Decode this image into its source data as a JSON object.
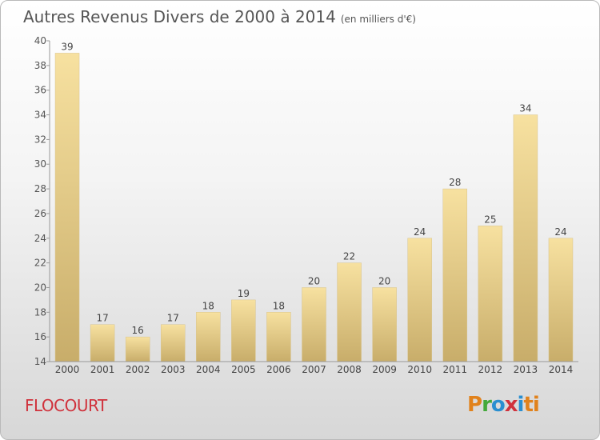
{
  "header": {
    "title": "Autres Revenus Divers de 2000 à 2014",
    "unit": "(en milliers d'€)"
  },
  "footer": {
    "place": "FLOCOURT",
    "logo_letters": [
      "P",
      "r",
      "o",
      "x",
      "i",
      "ti"
    ]
  },
  "colors": {
    "bar_light": "#f7e1a0",
    "bar_dark": "#c8ad6a",
    "place_text": "#d0323c"
  },
  "chart_data": {
    "type": "bar",
    "title": "Autres Revenus Divers de 2000 à 2014",
    "subtitle": "(en milliers d'€)",
    "categories": [
      "2000",
      "2001",
      "2002",
      "2003",
      "2004",
      "2005",
      "2006",
      "2007",
      "2008",
      "2009",
      "2010",
      "2011",
      "2012",
      "2013",
      "2014"
    ],
    "values": [
      39,
      17,
      16,
      17,
      18,
      19,
      18,
      20,
      22,
      20,
      24,
      28,
      25,
      34,
      24
    ],
    "ylim": [
      14,
      40
    ],
    "yticks": [
      14,
      16,
      18,
      20,
      22,
      24,
      26,
      28,
      30,
      32,
      34,
      36,
      38,
      40
    ],
    "grid": false,
    "data_labels": true
  }
}
